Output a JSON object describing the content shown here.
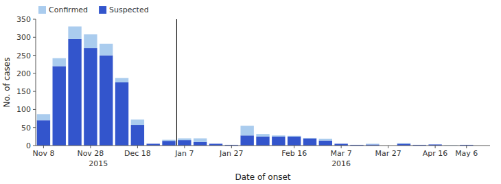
{
  "chart_data": {
    "type": "bar",
    "stacked": true,
    "categories": [
      "Nov 8",
      null,
      null,
      "Nov 28",
      null,
      null,
      "Dec 18",
      null,
      null,
      "Jan 7",
      null,
      null,
      "Jan 27",
      null,
      null,
      null,
      "Feb 16",
      null,
      null,
      "Mar 7",
      null,
      null,
      "Mar 27",
      null,
      null,
      "Apr 16",
      null,
      "May 6",
      null
    ],
    "series": [
      {
        "name": "Suspected",
        "color": "#3355cc",
        "values": [
          70,
          220,
          295,
          270,
          250,
          175,
          57,
          5,
          13,
          15,
          10,
          5,
          2,
          28,
          25,
          25,
          25,
          20,
          14,
          5,
          2,
          3,
          0,
          5,
          2,
          3,
          0,
          2,
          0
        ]
      },
      {
        "name": "Confirmed",
        "color": "#aaccee",
        "values": [
          17,
          22,
          35,
          38,
          32,
          12,
          15,
          0,
          3,
          5,
          10,
          0,
          0,
          27,
          7,
          3,
          2,
          1,
          5,
          0,
          0,
          2,
          0,
          2,
          0,
          0,
          1,
          0,
          0
        ]
      }
    ],
    "xlabel": "Date of onset",
    "ylabel": "No. of cases",
    "ylim": [
      0,
      350
    ],
    "yticks": [
      0,
      50,
      100,
      150,
      200,
      250,
      300,
      350
    ],
    "annotations": [
      {
        "text": "2015",
        "x": 3.5
      },
      {
        "text": "2016",
        "x": 19.0
      },
      {
        "type": "line",
        "x": 8.5
      }
    ],
    "legend": "upper left",
    "grid": false
  }
}
